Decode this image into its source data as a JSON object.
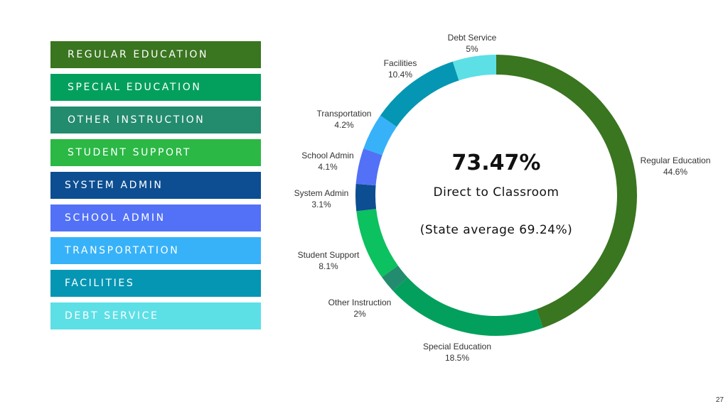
{
  "legend": [
    {
      "label": "REGULAR EDUCATION",
      "color": "#3a7520"
    },
    {
      "label": "SPECIAL EDUCATION",
      "color": "#02a05c"
    },
    {
      "label": "OTHER INSTRUCTION",
      "color": "#238b6e"
    },
    {
      "label": "STUDENT SUPPORT",
      "color": "#2bb845"
    },
    {
      "label": "SYSTEM ADMIN",
      "color": "#0c4e91"
    },
    {
      "label": "SCHOOL ADMIN",
      "color": "#5271f7"
    },
    {
      "label": "TRANSPORTATION",
      "color": "#37b2f9"
    },
    {
      "label": "FACILITIES",
      "color": "#0596b4"
    },
    {
      "label": "DEBT SERVICE",
      "color": "#5ddfe6"
    }
  ],
  "chart_data": {
    "type": "pie",
    "donut": true,
    "categories": [
      "Regular Education",
      "Special Education",
      "Other Instruction",
      "Student Support",
      "System Admin",
      "School Admin",
      "Transportation",
      "Facilities",
      "Debt Service"
    ],
    "values": [
      44.6,
      18.5,
      2,
      8.1,
      3.1,
      4.1,
      4.2,
      10.4,
      5
    ],
    "value_labels": [
      "44.6%",
      "18.5%",
      "2%",
      "8.1%",
      "3.1%",
      "4.1%",
      "4.2%",
      "10.4%",
      "5%"
    ],
    "colors": [
      "#3a7520",
      "#02a05c",
      "#238b6e",
      "#0cc15f",
      "#0c4e91",
      "#5271f7",
      "#37b2f9",
      "#0596b4",
      "#5ddfe6"
    ],
    "start": "top",
    "direction": "clockwise"
  },
  "center": {
    "headline": "73.47%",
    "subtitle": "Direct to Classroom",
    "note": "(State average 69.24%)"
  },
  "page_number": "27"
}
